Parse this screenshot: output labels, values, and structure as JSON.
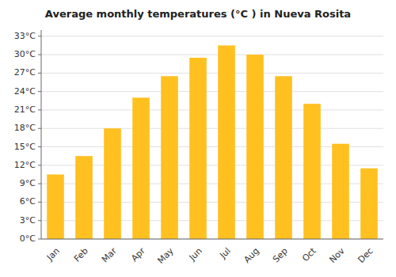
{
  "chart_data": {
    "type": "bar",
    "title": "Average monthly temperatures (°C ) in Nueva Rosita",
    "categories": [
      "Jan",
      "Feb",
      "Mar",
      "Apr",
      "May",
      "Jun",
      "Jul",
      "Aug",
      "Sep",
      "Oct",
      "Nov",
      "Dec"
    ],
    "values": [
      10.5,
      13.5,
      18.0,
      23.0,
      26.5,
      29.5,
      31.5,
      30.0,
      26.5,
      22.0,
      15.5,
      11.5
    ],
    "color": "#FFC020",
    "ylim": [
      0,
      34
    ],
    "yticks": [
      {
        "value": 0,
        "label": "0°C"
      },
      {
        "value": 3,
        "label": "3°C"
      },
      {
        "value": 6,
        "label": "6°C"
      },
      {
        "value": 9,
        "label": "9°C"
      },
      {
        "value": 12,
        "label": "12°C"
      },
      {
        "value": 15,
        "label": "15°C"
      },
      {
        "value": 18,
        "label": "18°C"
      },
      {
        "value": 21,
        "label": "21°C"
      },
      {
        "value": 24,
        "label": "24°C"
      },
      {
        "value": 27,
        "label": "27°C"
      },
      {
        "value": 30,
        "label": "30°C"
      },
      {
        "value": 33,
        "label": "33°C"
      }
    ],
    "grid": true
  }
}
